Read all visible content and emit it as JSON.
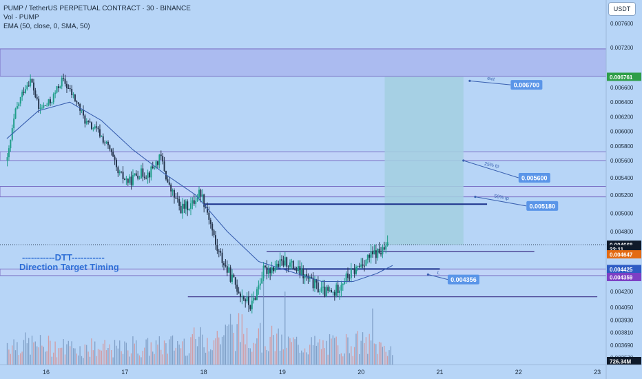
{
  "legend": {
    "symbol": "PUMP / TetherUS PERPETUAL CONTRACT · 30 · BINANCE",
    "volume": "Vol · PUMP",
    "ema": "EMA (50, close, 0, SMA, 50)"
  },
  "currency_button": "USDT",
  "watermark": {
    "line1": "-----------DTT-----------",
    "line2": "Direction Target Timing"
  },
  "colors": {
    "background": "#b7d5f7",
    "bull": "#1f9e8a",
    "bear": "#27374f",
    "ema": "#3a60b0",
    "zone": "#a6baf0",
    "target_box": "#a3cfe0",
    "callout": "#5a95e8"
  },
  "chart_data": {
    "type": "candlestick",
    "symbol": "PUMP / TetherUS PERPETUAL CONTRACT",
    "interval": "30",
    "exchange": "BINANCE",
    "y_ticks": [
      "0.007600",
      "0.007200",
      "0.006600",
      "0.006400",
      "0.006200",
      "0.006000",
      "0.005800",
      "0.005600",
      "0.005400",
      "0.005200",
      "0.005000",
      "0.004800",
      "0.004200",
      "0.004050",
      "0.003930",
      "0.003810",
      "0.003690",
      "0.003570"
    ],
    "x_ticks": [
      {
        "label": "16",
        "day": 16
      },
      {
        "label": "17",
        "day": 17
      },
      {
        "label": "18",
        "day": 18
      },
      {
        "label": "19",
        "day": 19
      },
      {
        "label": "20",
        "day": 20
      },
      {
        "label": "21",
        "day": 21
      },
      {
        "label": "22",
        "day": 22
      },
      {
        "label": "23",
        "day": 23
      }
    ],
    "price_path": [
      [
        15.5,
        0.0056
      ],
      [
        15.6,
        0.00625
      ],
      [
        15.72,
        0.0066
      ],
      [
        15.8,
        0.00672
      ],
      [
        15.9,
        0.0063
      ],
      [
        16.05,
        0.0064
      ],
      [
        16.2,
        0.00672
      ],
      [
        16.38,
        0.0064
      ],
      [
        16.5,
        0.00612
      ],
      [
        16.65,
        0.006
      ],
      [
        16.8,
        0.00575
      ],
      [
        16.9,
        0.00545
      ],
      [
        17.05,
        0.00535
      ],
      [
        17.15,
        0.00545
      ],
      [
        17.3,
        0.00545
      ],
      [
        17.45,
        0.00565
      ],
      [
        17.55,
        0.0053
      ],
      [
        17.7,
        0.00505
      ],
      [
        17.85,
        0.0051
      ],
      [
        17.95,
        0.00525
      ],
      [
        18.05,
        0.005
      ],
      [
        18.15,
        0.00465
      ],
      [
        18.3,
        0.0044
      ],
      [
        18.45,
        0.0042
      ],
      [
        18.6,
        0.00405
      ],
      [
        18.75,
        0.0044
      ],
      [
        18.9,
        0.00445
      ],
      [
        19.05,
        0.0045
      ],
      [
        19.2,
        0.0044
      ],
      [
        19.35,
        0.0043
      ],
      [
        19.5,
        0.0042
      ],
      [
        19.65,
        0.00418
      ],
      [
        19.75,
        0.0043
      ],
      [
        19.9,
        0.0044
      ],
      [
        20.05,
        0.00452
      ],
      [
        20.18,
        0.00458
      ],
      [
        20.27,
        0.0046
      ],
      [
        20.35,
        0.00467
      ]
    ],
    "ema": {
      "name": "EMA 50",
      "points": [
        [
          15.5,
          0.0059
        ],
        [
          15.9,
          0.00628
        ],
        [
          16.3,
          0.0064
        ],
        [
          16.7,
          0.00615
        ],
        [
          17.1,
          0.00575
        ],
        [
          17.5,
          0.00545
        ],
        [
          17.9,
          0.0052
        ],
        [
          18.3,
          0.0048
        ],
        [
          18.7,
          0.0045
        ],
        [
          19.1,
          0.0044
        ],
        [
          19.5,
          0.0043
        ],
        [
          19.9,
          0.0043
        ],
        [
          20.2,
          0.00438
        ],
        [
          20.4,
          0.00446
        ]
      ]
    },
    "volume": {
      "label": "726.34M",
      "profile": [
        [
          15.5,
          0.35
        ],
        [
          16.0,
          0.3
        ],
        [
          16.5,
          0.25
        ],
        [
          17.0,
          0.25
        ],
        [
          17.5,
          0.3
        ],
        [
          18.0,
          0.4
        ],
        [
          18.5,
          0.55
        ],
        [
          19.0,
          0.35
        ],
        [
          19.5,
          0.3
        ],
        [
          20.0,
          0.35
        ],
        [
          20.4,
          0.25
        ]
      ]
    },
    "zones": [
      {
        "from": 0.00677,
        "to": 0.00718,
        "shade": "dark"
      },
      {
        "from": 0.0056,
        "to": 0.00572,
        "shade": "light"
      },
      {
        "from": 0.00518,
        "to": 0.0053,
        "shade": "light"
      },
      {
        "from": 0.004359,
        "to": 0.004425,
        "shade": "light"
      }
    ],
    "levels": [
      {
        "price": 0.0051,
        "from": 18.0,
        "to": 21.6,
        "weight": "bold"
      },
      {
        "price": 0.0046,
        "from": 18.8,
        "to": 22.2,
        "weight": "normal"
      },
      {
        "price": 0.004425,
        "from": 18.8,
        "to": 21.0,
        "weight": "bold"
      },
      {
        "price": 0.00415,
        "from": 17.8,
        "to": 23.0,
        "weight": "normal"
      }
    ],
    "target_box": {
      "from_day": 20.3,
      "to_day": 21.3,
      "top": 0.00676,
      "bottom": 0.004668
    },
    "annotations": [
      {
        "note": "exit",
        "target": "0.006700",
        "anchor_day": 21.38,
        "anchor_price": 0.0067,
        "label_day": 21.9,
        "label_price": 0.00664
      },
      {
        "note": "25% tp",
        "target": "0.005600",
        "anchor_day": 21.3,
        "anchor_price": 0.0056,
        "label_day": 22.0,
        "label_price": 0.0054
      },
      {
        "note": "50% tp",
        "target": "0.005180",
        "anchor_day": 21.45,
        "anchor_price": 0.00518,
        "label_day": 22.1,
        "label_price": 0.00508
      },
      {
        "note": "L",
        "target": "0.004356",
        "anchor_day": 20.85,
        "anchor_price": 0.00437,
        "label_day": 21.1,
        "label_price": 0.00432
      }
    ],
    "price_labels": [
      {
        "value": "0.006761",
        "price": 0.006761,
        "color": "#2e9e48"
      },
      {
        "value": "0.004668",
        "price": 0.004668,
        "color": "#0f1a2a"
      },
      {
        "value": "22:11",
        "price": 0.004625,
        "color": "#0f1a2a"
      },
      {
        "value": "0.004647",
        "price": 0.004572,
        "color": "#e36a12"
      },
      {
        "value": "0.004425",
        "price": 0.004425,
        "color": "#2e5cc4"
      },
      {
        "value": "0.004359",
        "price": 0.004345,
        "color": "#7d3fc4"
      }
    ]
  }
}
